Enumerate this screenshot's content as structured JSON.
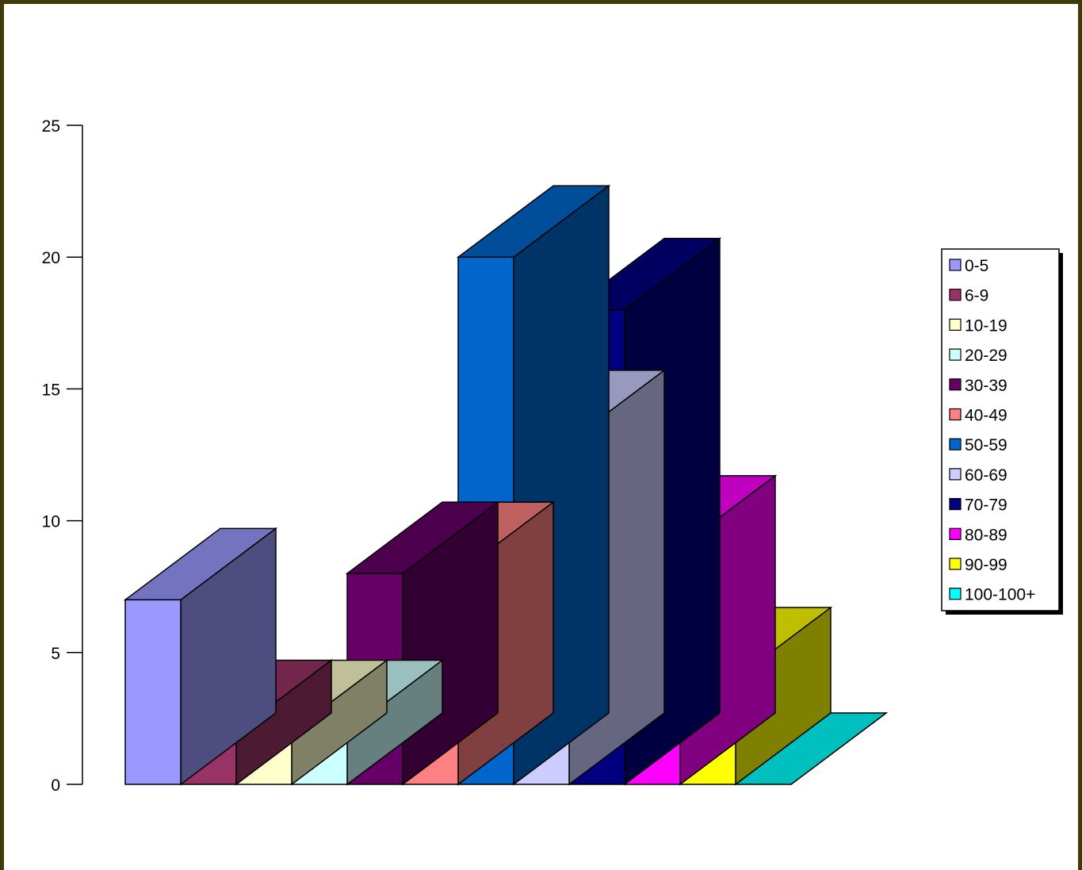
{
  "chart_data": {
    "type": "bar",
    "subtype": "3d-stepped",
    "title": "",
    "xlabel": "",
    "ylabel": "",
    "ylim": [
      0,
      25
    ],
    "yticks": [
      0,
      5,
      10,
      15,
      20,
      25
    ],
    "y_tick_labels": [
      "0",
      "5",
      "10",
      "15",
      "20",
      "25"
    ],
    "grid": false,
    "legend_position": "right",
    "series": [
      {
        "name": "0-5",
        "value": 7,
        "color": "#9999ff"
      },
      {
        "name": "6-9",
        "value": 2,
        "color": "#993366"
      },
      {
        "name": "10-19",
        "value": 2,
        "color": "#ffffcc"
      },
      {
        "name": "20-29",
        "value": 2,
        "color": "#ccffff"
      },
      {
        "name": "30-39",
        "value": 8,
        "color": "#660066"
      },
      {
        "name": "40-49",
        "value": 8,
        "color": "#ff8080"
      },
      {
        "name": "50-59",
        "value": 20,
        "color": "#0066cc"
      },
      {
        "name": "60-69",
        "value": 13,
        "color": "#ccccff"
      },
      {
        "name": "70-79",
        "value": 18,
        "color": "#000080"
      },
      {
        "name": "80-89",
        "value": 9,
        "color": "#ff00ff"
      },
      {
        "name": "90-99",
        "value": 4,
        "color": "#ffff00"
      },
      {
        "name": "100-100+",
        "value": 0,
        "color": "#00ffff"
      }
    ],
    "frame_color": "#3f3a0a"
  }
}
